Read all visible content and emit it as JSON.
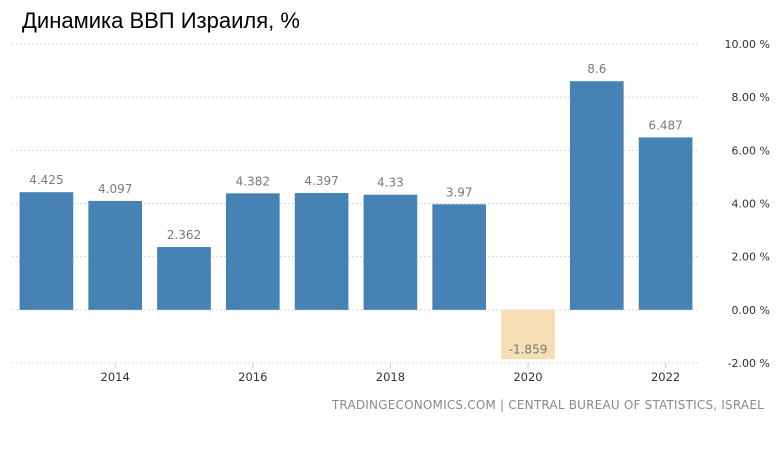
{
  "title": "Динамика ВВП Израиля, %",
  "source": "TRADINGECONOMICS.COM | CENTRAL BUREAU OF STATISTICS, ISRAEL",
  "chart_data": {
    "type": "bar",
    "title": "Динамика ВВП Израиля, %",
    "x": [
      2013,
      2014,
      2015,
      2016,
      2017,
      2018,
      2019,
      2020,
      2021,
      2022
    ],
    "values": [
      4.425,
      4.097,
      2.362,
      4.382,
      4.397,
      4.33,
      3.97,
      -1.859,
      8.6,
      6.487
    ],
    "data_labels": [
      "4.425",
      "4.097",
      "2.362",
      "4.382",
      "4.397",
      "4.33",
      "3.97",
      "-1.859",
      "8.6",
      "6.487"
    ],
    "x_tick_labels": [
      "2014",
      "2016",
      "2018",
      "2020",
      "2022"
    ],
    "x_tick_values": [
      2014,
      2016,
      2018,
      2020,
      2022
    ],
    "y_ticks": [
      10,
      8,
      6,
      4,
      2,
      0,
      -2
    ],
    "y_tick_labels": [
      "10.00 %",
      "8.00 %",
      "6.00 %",
      "4.00 %",
      "2.00 %",
      "0.00 %",
      "-2.00 %"
    ],
    "ylim": [
      -2,
      10
    ],
    "grid": "horizontal dashed",
    "y_axis_position": "right",
    "colors": {
      "positive": "#4682b4",
      "negative": "#f5deb3",
      "grid": "#d9d9d9"
    }
  }
}
